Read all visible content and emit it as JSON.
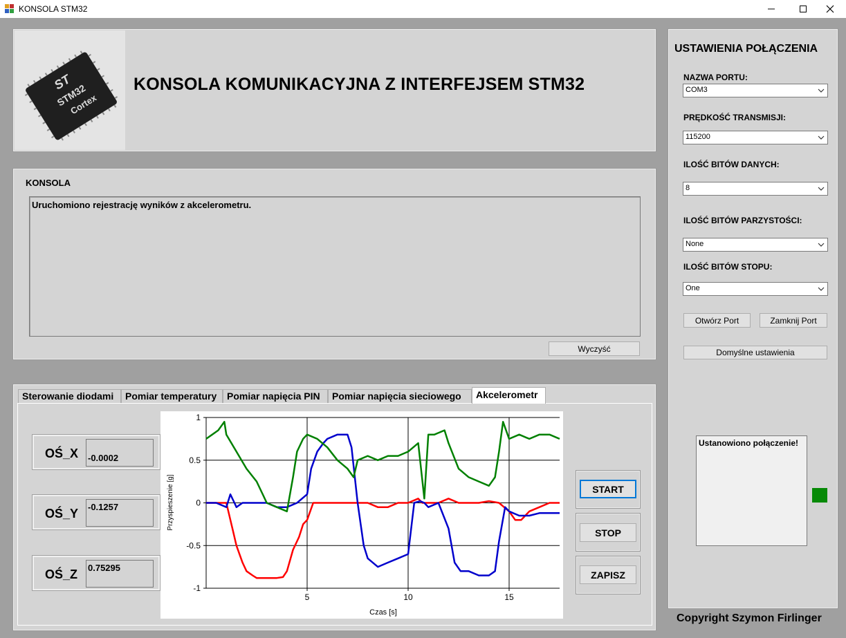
{
  "window": {
    "title": "KONSOLA STM32"
  },
  "header": {
    "title": "KONSOLA KOMUNIKACYJNA Z INTERFEJSEM STM32",
    "chip": {
      "logo": "ST",
      "model": "STM32",
      "brand": "Cortex"
    }
  },
  "console": {
    "label": "KONSOLA",
    "text": "Uruchomiono rejestrację wyników z akcelerometru.",
    "clear_button": "Wyczyść"
  },
  "tabs": [
    {
      "label": "Sterowanie diodami",
      "active": false
    },
    {
      "label": "Pomiar temperatury",
      "active": false
    },
    {
      "label": "Pomiar napięcia PIN",
      "active": false
    },
    {
      "label": "Pomiar napięcia sieciowego",
      "active": false
    },
    {
      "label": "Akcelerometr",
      "active": true
    }
  ],
  "accelerometer": {
    "x_label": "OŚ_X",
    "x_value": "-0.0002",
    "y_label": "OŚ_Y",
    "y_value": "-0.1257",
    "z_label": "OŚ_Z",
    "z_value": "0.75295",
    "start_button": "START",
    "stop_button": "STOP",
    "save_button": "ZAPISZ"
  },
  "connection": {
    "title": "USTAWIENIA POŁĄCZENIA",
    "port_label": "NAZWA PORTU:",
    "port_value": "COM3",
    "baud_label": "PRĘDKOŚĆ TRANSMISJI:",
    "baud_value": "115200",
    "databits_label": "ILOŚĆ BITÓW DANYCH:",
    "databits_value": "8",
    "parity_label": "ILOŚĆ BITÓW PARZYSTOŚCI:",
    "parity_value": "None",
    "stopbits_label": "ILOŚĆ BITÓW STOPU:",
    "stopbits_value": "One",
    "open_button": "Otwórz Port",
    "close_button": "Zamknij Port",
    "defaults_button": "Domyślne ustawienia",
    "status_text": "Ustanowiono połączenie!",
    "status_color": "#078a07"
  },
  "footer": {
    "copyright": "Copyright Szymon Firlinger"
  },
  "chart_data": {
    "type": "line",
    "xlabel": "Czas [s]",
    "ylabel": "Przyspieszenie [g]",
    "xlim": [
      0,
      17.5
    ],
    "ylim": [
      -1,
      1
    ],
    "xticks": [
      5,
      10,
      15
    ],
    "yticks": [
      1,
      0.5,
      0,
      -0.5,
      -1
    ],
    "grid": true,
    "legend_position": "top-right",
    "series": [
      {
        "name": "OŚ_X",
        "color": "#ff0000",
        "x": [
          0,
          1.0,
          1.3,
          1.5,
          1.8,
          2.0,
          2.3,
          2.5,
          3.0,
          3.5,
          3.8,
          4.0,
          4.3,
          4.6,
          4.8,
          5.0,
          5.3,
          6.0,
          6.5,
          7.0,
          7.5,
          8.0,
          8.5,
          9.0,
          9.5,
          10.0,
          10.5,
          10.7,
          11.0,
          11.5,
          12.0,
          12.5,
          13.0,
          13.5,
          14.0,
          14.5,
          15.0,
          15.3,
          15.6,
          16.0,
          16.5,
          17.0,
          17.5
        ],
        "y": [
          0,
          0,
          -0.3,
          -0.5,
          -0.7,
          -0.8,
          -0.85,
          -0.88,
          -0.88,
          -0.88,
          -0.87,
          -0.8,
          -0.55,
          -0.4,
          -0.25,
          -0.2,
          0,
          0,
          0,
          0,
          0,
          0,
          -0.05,
          -0.05,
          0,
          0,
          0.05,
          0,
          0,
          0,
          0.05,
          0,
          0,
          0,
          0.02,
          0,
          -0.1,
          -0.2,
          -0.2,
          -0.1,
          -0.05,
          0,
          0
        ]
      },
      {
        "name": "OŚ_Y",
        "color": "#0000cc",
        "x": [
          0,
          0.5,
          1.0,
          1.2,
          1.4,
          1.5,
          1.8,
          2.0,
          2.5,
          3.0,
          3.5,
          4.0,
          4.5,
          5.0,
          5.2,
          5.5,
          5.8,
          6.0,
          6.5,
          7.0,
          7.2,
          7.5,
          7.8,
          8.0,
          8.5,
          9.0,
          9.5,
          10.0,
          10.3,
          10.6,
          10.8,
          11.0,
          11.5,
          12.0,
          12.3,
          12.6,
          13.0,
          13.5,
          14.0,
          14.3,
          14.5,
          14.8,
          15.0,
          15.5,
          16.0,
          16.5,
          17.0,
          17.5
        ],
        "y": [
          0,
          0,
          -0.05,
          0.1,
          0,
          -0.05,
          0,
          0,
          0,
          0,
          -0.05,
          -0.05,
          0,
          0.1,
          0.4,
          0.6,
          0.7,
          0.75,
          0.8,
          0.8,
          0.65,
          0,
          -0.5,
          -0.65,
          -0.75,
          -0.7,
          -0.65,
          -0.6,
          0,
          0.02,
          0,
          -0.05,
          0,
          -0.3,
          -0.7,
          -0.8,
          -0.8,
          -0.85,
          -0.85,
          -0.8,
          -0.45,
          -0.05,
          -0.1,
          -0.15,
          -0.15,
          -0.12,
          -0.12,
          -0.12
        ]
      },
      {
        "name": "OŚ_Z",
        "color": "#008000",
        "x": [
          0,
          0.3,
          0.6,
          0.9,
          1.0,
          1.5,
          2.0,
          2.5,
          2.8,
          3.0,
          3.5,
          4.0,
          4.3,
          4.5,
          4.8,
          5.0,
          5.5,
          6.0,
          6.5,
          7.0,
          7.3,
          7.5,
          8.0,
          8.5,
          9.0,
          9.5,
          10.0,
          10.5,
          10.8,
          11.0,
          11.3,
          11.8,
          12.0,
          12.5,
          13.0,
          13.5,
          14.0,
          14.3,
          14.5,
          14.7,
          15.0,
          15.5,
          16.0,
          16.5,
          17.0,
          17.5
        ],
        "y": [
          0.75,
          0.8,
          0.85,
          0.95,
          0.8,
          0.6,
          0.4,
          0.25,
          0.1,
          0,
          -0.05,
          -0.1,
          0.3,
          0.6,
          0.75,
          0.8,
          0.75,
          0.65,
          0.5,
          0.4,
          0.3,
          0.5,
          0.55,
          0.5,
          0.55,
          0.55,
          0.6,
          0.7,
          0.05,
          0.8,
          0.8,
          0.85,
          0.7,
          0.4,
          0.3,
          0.25,
          0.2,
          0.3,
          0.6,
          0.95,
          0.75,
          0.8,
          0.75,
          0.8,
          0.8,
          0.75
        ]
      }
    ]
  }
}
